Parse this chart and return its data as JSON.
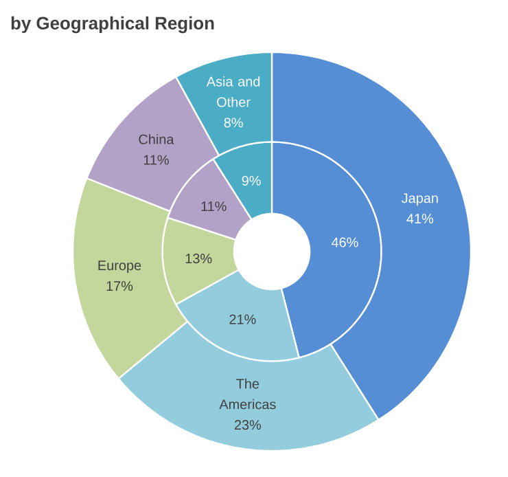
{
  "chart_data": {
    "type": "donut",
    "title": "by Geographical Region",
    "categories": [
      "Japan",
      "The Americas",
      "Europe",
      "China",
      "Asia and Other"
    ],
    "colors": [
      "#558ed5",
      "#93cddd",
      "#c3d69b",
      "#b3a2c7",
      "#4bacc6"
    ],
    "series": [
      {
        "values": [
          46,
          21,
          13,
          11,
          9
        ],
        "value_labels": [
          "46%",
          "21%",
          "13%",
          "11%",
          "9%"
        ]
      },
      {
        "values": [
          41,
          23,
          17,
          11,
          8
        ],
        "value_labels": [
          "41%",
          "23%",
          "17%",
          "11%",
          "8%"
        ]
      }
    ]
  }
}
